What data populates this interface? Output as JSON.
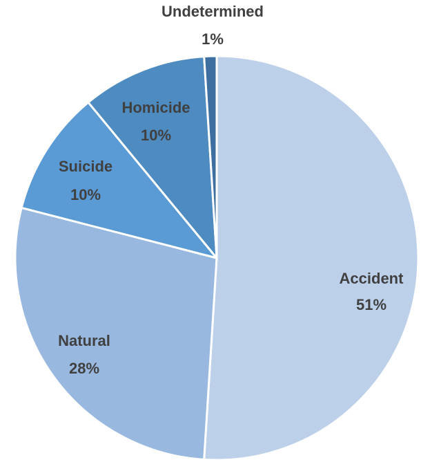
{
  "chart_data": {
    "type": "pie",
    "title": "",
    "start_angle_deg": 0,
    "direction": "clockwise",
    "slices": [
      {
        "label": "Accident",
        "value": 51,
        "value_label": "51%",
        "color": "#bdd0ea"
      },
      {
        "label": "Natural",
        "value": 28,
        "value_label": "28%",
        "color": "#99b8e0"
      },
      {
        "label": "Suicide",
        "value": 10,
        "value_label": "10%",
        "color": "#5b9bd5"
      },
      {
        "label": "Homicide",
        "value": 10,
        "value_label": "10%",
        "color": "#4e8bc0"
      },
      {
        "label": "Undetermined",
        "value": 1,
        "value_label": "1%",
        "color": "#3d6fa0"
      }
    ],
    "legend": "none",
    "border_color": "#ffffff"
  }
}
